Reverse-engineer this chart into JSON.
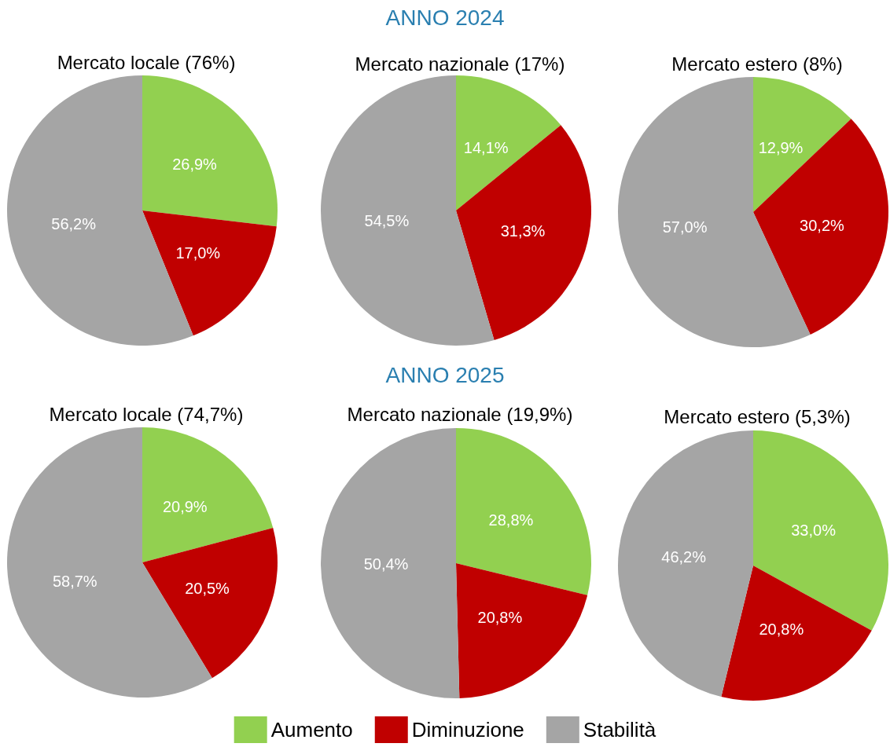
{
  "chart_data": [
    {
      "type": "pie",
      "title": "Mercato locale (76%)",
      "categories": [
        null,
        null,
        null
      ],
      "values": [
        26.9,
        17.0,
        56.2
      ],
      "colors": [
        "#92d050",
        "#c00000",
        "#a5a5a5"
      ],
      "value_labels": [
        "26,9%",
        "17,0%",
        "56,2%"
      ],
      "legend": false
    },
    {
      "type": "pie",
      "title": "Mercato nazionale (17%)",
      "annotations": [
        "ANNO 2024"
      ],
      "categories": [
        null,
        null,
        null
      ],
      "values": [
        14.1,
        31.3,
        54.5
      ],
      "colors": [
        "#92d050",
        "#c00000",
        "#a5a5a5"
      ],
      "value_labels": [
        "14,1%",
        "31,3%",
        "54,5%"
      ],
      "legend": false
    },
    {
      "type": "pie",
      "title": "Mercato estero (8%)",
      "categories": [
        null,
        null,
        null
      ],
      "values": [
        12.9,
        30.2,
        57.0
      ],
      "colors": [
        "#92d050",
        "#c00000",
        "#a5a5a5"
      ],
      "value_labels": [
        "12,9%",
        "30,2%",
        "57,0%"
      ],
      "legend": false
    },
    {
      "type": "pie",
      "title": "Mercato locale (74,7%)",
      "categories": [
        null,
        null,
        null
      ],
      "values": [
        20.9,
        20.5,
        58.7
      ],
      "colors": [
        "#92d050",
        "#c00000",
        "#a5a5a5"
      ],
      "value_labels": [
        "20,9%",
        "20,5%",
        "58,7%"
      ],
      "legend": false
    },
    {
      "type": "pie",
      "title": "Mercato nazionale (19,9%)",
      "annotations": [
        "ANNO 2025"
      ],
      "categories": [
        "Aumento",
        "Diminuzione",
        "Stabilità"
      ],
      "values": [
        28.8,
        20.8,
        50.4
      ],
      "colors": [
        "#92d050",
        "#c00000",
        "#a5a5a5"
      ],
      "value_labels": [
        "28,8%",
        "20,8%",
        "50,4%"
      ],
      "legend": "bottom"
    },
    {
      "type": "pie",
      "title": "Mercato estero (5,3%)",
      "categories": [
        null,
        null,
        null
      ],
      "values": [
        33.0,
        20.8,
        46.2
      ],
      "colors": [
        "#92d050",
        "#c00000",
        "#a5a5a5"
      ],
      "value_labels": [
        "33,0%",
        "20,8%",
        "46,2%"
      ],
      "legend": false
    }
  ]
}
